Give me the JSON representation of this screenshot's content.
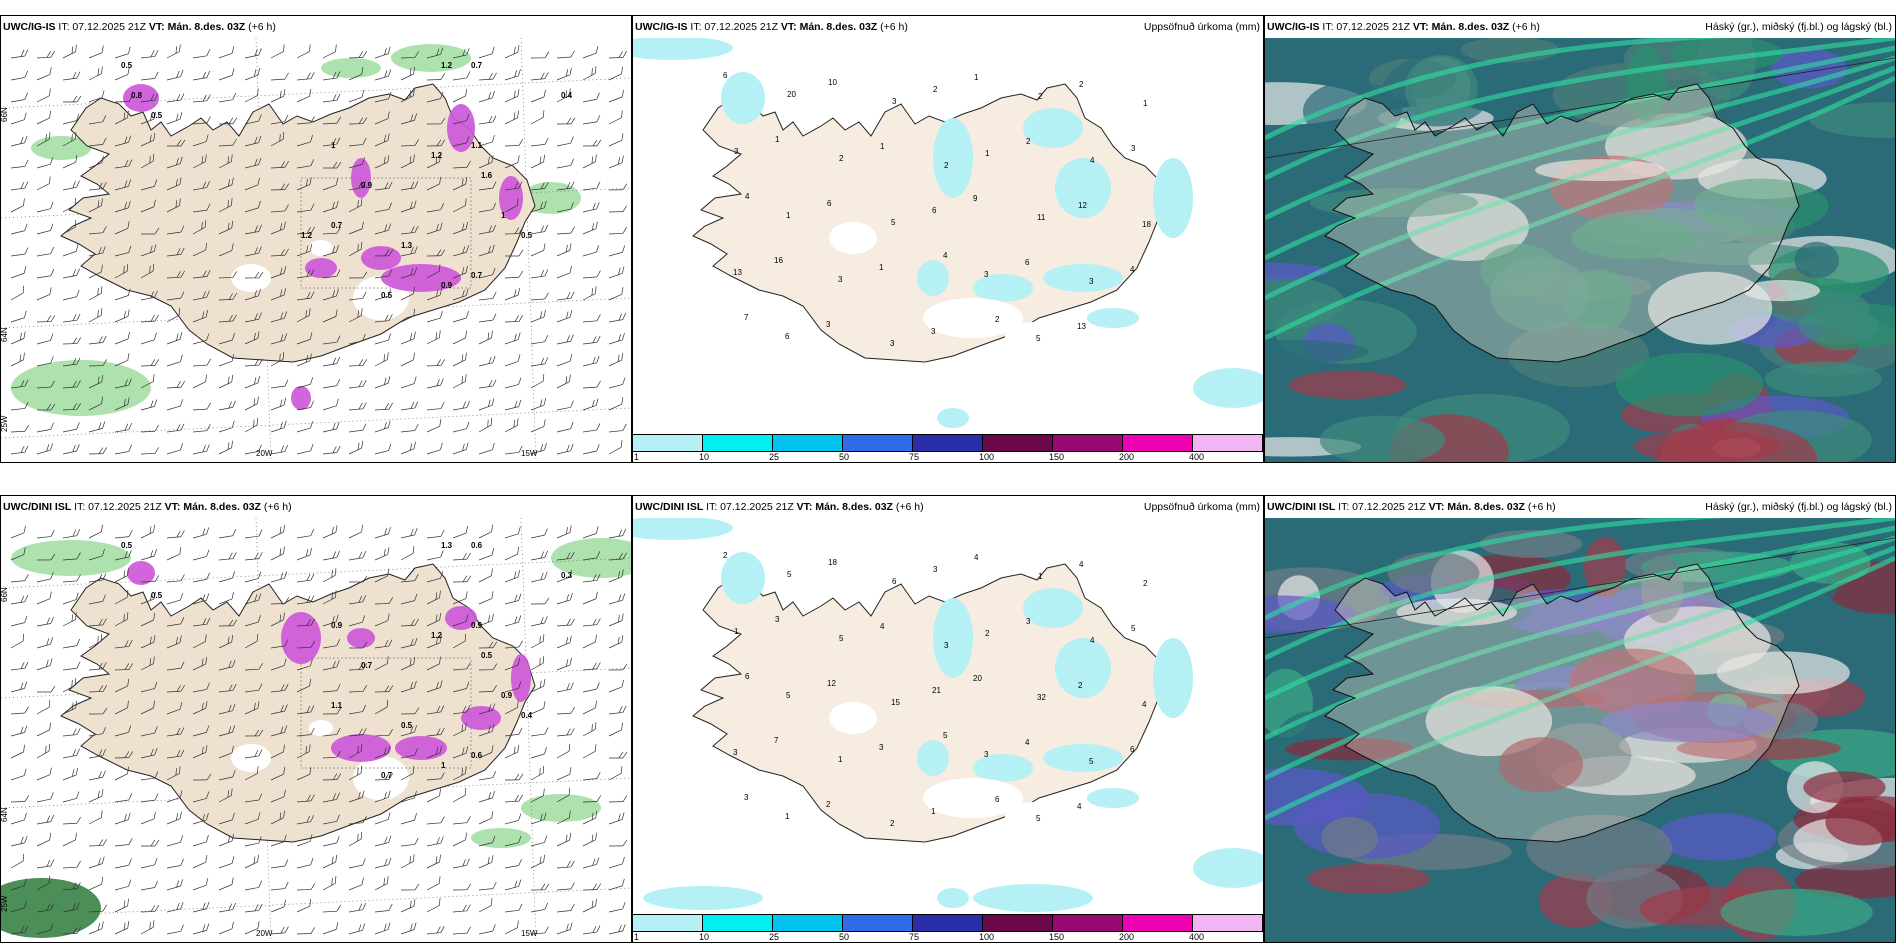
{
  "panels": [
    {
      "model": "UWC/IG-IS",
      "it": "IT: 07.12.2025 21Z",
      "vt_label": "VT:",
      "vt": "Mán. 8.des. 03Z",
      "offset": "(+6 h)",
      "right": ""
    },
    {
      "model": "UWC/IG-IS",
      "it": "IT: 07.12.2025 21Z",
      "vt_label": "VT:",
      "vt": "Mán. 8.des. 03Z",
      "offset": "(+6 h)",
      "right": "Uppsöfnuð úrkoma (mm)"
    },
    {
      "model": "UWC/IG-IS",
      "it": "IT: 07.12.2025 21Z",
      "vt_label": "VT:",
      "vt": "Mán. 8.des. 03Z",
      "offset": "(+6 h)",
      "right": "Háský (gr.), miðský (fj.bl.) og lágský (bl.)"
    },
    {
      "model": "UWC/DINI ISL",
      "it": "IT: 07.12.2025 21Z",
      "vt_label": "VT:",
      "vt": "Mán. 8.des. 03Z",
      "offset": "(+6 h)",
      "right": ""
    },
    {
      "model": "UWC/DINI ISL",
      "it": "IT: 07.12.2025 21Z",
      "vt_label": "VT:",
      "vt": "Mán. 8.des. 03Z",
      "offset": "(+6 h)",
      "right": "Uppsöfnuð úrkoma (mm)"
    },
    {
      "model": "UWC/DINI ISL",
      "it": "IT: 07.12.2025 21Z",
      "vt_label": "VT:",
      "vt": "Mán. 8.des. 03Z",
      "offset": "(+6 h)",
      "right": "Háský (gr.), miðský (fj.bl.) og lágský (bl.)"
    }
  ],
  "lon_labels": [
    "20W",
    "15W"
  ],
  "lat_labels": [
    "66N",
    "64N",
    "25W"
  ],
  "colorbar": {
    "labels": [
      "1",
      "10",
      "25",
      "50",
      "75",
      "100",
      "150",
      "200",
      "400"
    ],
    "colors": [
      "#b4f0f4",
      "#00f0f0",
      "#00c4ec",
      "#2d6ee8",
      "#2a2ea8",
      "#6a0a4a",
      "#980a72",
      "#f000b4",
      "#f2b4f2"
    ]
  },
  "precip_top": [
    "6",
    "20",
    "10",
    "3",
    "2",
    "1",
    "2",
    "2",
    "1",
    "3",
    "1",
    "2",
    "1",
    "2",
    "1",
    "2",
    "4",
    "3",
    "4",
    "1",
    "6",
    "5",
    "6",
    "9",
    "11",
    "12",
    "18",
    "13",
    "16",
    "3",
    "1",
    "4",
    "3",
    "6",
    "3",
    "4",
    "7",
    "6",
    "3",
    "3",
    "3",
    "2",
    "5",
    "13"
  ],
  "precip_bottom": [
    "2",
    "5",
    "18",
    "6",
    "3",
    "4",
    "1",
    "4",
    "2",
    "1",
    "3",
    "5",
    "4",
    "3",
    "2",
    "3",
    "4",
    "5",
    "6",
    "5",
    "12",
    "15",
    "21",
    "20",
    "32",
    "2",
    "4",
    "3",
    "7",
    "1",
    "3",
    "5",
    "3",
    "4",
    "5",
    "6",
    "3",
    "1",
    "2",
    "2",
    "1",
    "6",
    "5",
    "4"
  ],
  "wind_top": [
    "0.5",
    "1.2",
    "0.7",
    "0.5",
    "1",
    "0.9",
    "0.7",
    "1.3",
    "0.5",
    "0.9",
    "0.7",
    "1",
    "0.5",
    "0.4",
    "1.2",
    "1.1",
    "1.6",
    "0.8",
    "1.2"
  ],
  "wind_bottom": [
    "0.5",
    "1.3",
    "0.6",
    "0.5",
    "0.9",
    "0.7",
    "1.1",
    "0.5",
    "0.7",
    "1",
    "0.6",
    "0.9",
    "0.4",
    "0.3",
    "1.2",
    "0.9",
    "0.5"
  ]
}
